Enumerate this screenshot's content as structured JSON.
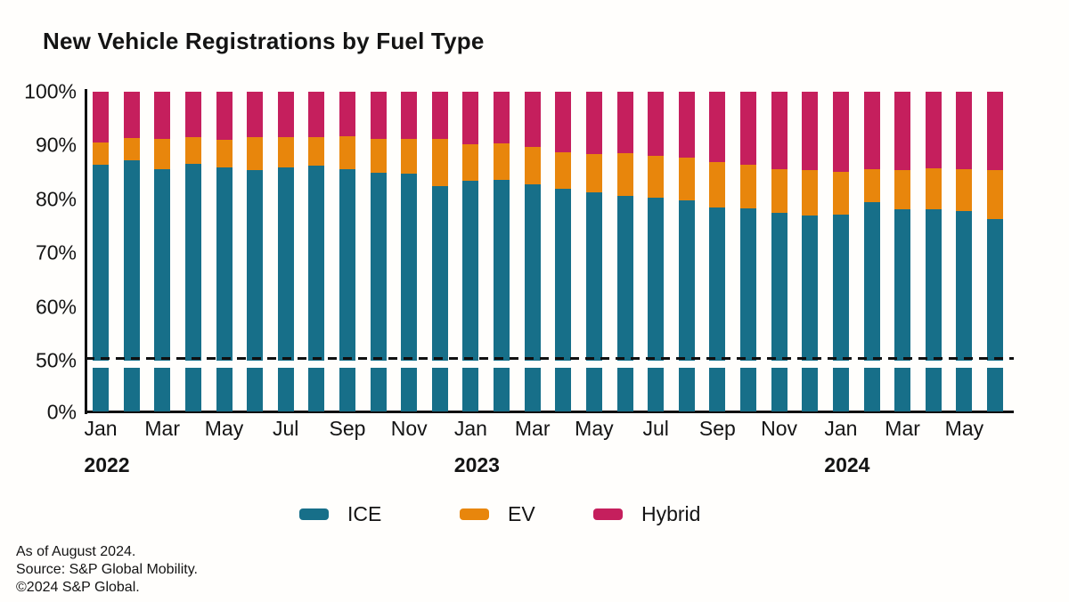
{
  "chart_data": {
    "type": "bar",
    "stacked": true,
    "unit": "percent",
    "title": "New Vehicle Registrations by Fuel Type",
    "xlabel": "",
    "ylabel": "",
    "ylim": [
      0,
      100
    ],
    "grid": false,
    "legend_position": "bottom",
    "axis_break": {
      "compressed_range": [
        0,
        50
      ],
      "note": "y-axis compressed between 0% and 50%, shown with white gap in bars below 50% line"
    },
    "reference_line": {
      "pct": 50,
      "style": "dashed",
      "color": "#101010"
    },
    "x": [
      "Jan 2022",
      "Feb 2022",
      "Mar 2022",
      "Apr 2022",
      "May 2022",
      "Jun 2022",
      "Jul 2022",
      "Aug 2022",
      "Sep 2022",
      "Oct 2022",
      "Nov 2022",
      "Dec 2022",
      "Jan 2023",
      "Feb 2023",
      "Mar 2023",
      "Apr 2023",
      "May 2023",
      "Jun 2023",
      "Jul 2023",
      "Aug 2023",
      "Sep 2023",
      "Oct 2023",
      "Nov 2023",
      "Dec 2023",
      "Jan 2024",
      "Feb 2024",
      "Mar 2024",
      "Apr 2024",
      "May 2024",
      "Jun 2024"
    ],
    "series": [
      {
        "name": "ICE",
        "color": "#176F89",
        "values": [
          86.5,
          87.2,
          85.6,
          86.6,
          86.0,
          85.5,
          86.0,
          86.2,
          85.6,
          85.0,
          84.8,
          82.5,
          83.4,
          83.6,
          82.7,
          82.0,
          81.3,
          80.7,
          80.3,
          79.8,
          78.5,
          78.3,
          77.5,
          77.0,
          77.2,
          79.5,
          78.2,
          78.2,
          77.8,
          76.3
        ]
      },
      {
        "name": "EV",
        "color": "#E8860C",
        "values": [
          4.0,
          4.2,
          5.7,
          4.9,
          5.1,
          6.0,
          5.6,
          5.4,
          6.1,
          6.3,
          6.4,
          8.7,
          6.9,
          6.8,
          7.0,
          6.8,
          7.1,
          7.9,
          7.8,
          7.9,
          8.5,
          8.1,
          8.1,
          8.4,
          7.9,
          6.1,
          7.3,
          7.6,
          7.8,
          9.1
        ]
      },
      {
        "name": "Hybrid",
        "color": "#C51F5D",
        "values": [
          9.5,
          8.6,
          8.7,
          8.5,
          8.9,
          8.5,
          8.4,
          8.4,
          8.3,
          8.7,
          8.8,
          8.8,
          9.7,
          9.6,
          10.3,
          11.2,
          11.6,
          11.4,
          11.9,
          12.3,
          13.0,
          13.6,
          14.4,
          14.6,
          14.9,
          14.4,
          14.5,
          14.2,
          14.4,
          14.6
        ]
      }
    ],
    "y_ticks": [
      {
        "pct": 100,
        "label": "100%"
      },
      {
        "pct": 90,
        "label": "90%"
      },
      {
        "pct": 80,
        "label": "80%"
      },
      {
        "pct": 70,
        "label": "70%"
      },
      {
        "pct": 60,
        "label": "60%"
      },
      {
        "pct": 50,
        "label": "50%"
      },
      {
        "pct": 0,
        "label": "0%"
      }
    ],
    "x_ticks": [
      {
        "index": 0,
        "label": "Jan"
      },
      {
        "index": 2,
        "label": "Mar"
      },
      {
        "index": 4,
        "label": "May"
      },
      {
        "index": 6,
        "label": "Jul"
      },
      {
        "index": 8,
        "label": "Sep"
      },
      {
        "index": 10,
        "label": "Nov"
      },
      {
        "index": 12,
        "label": "Jan"
      },
      {
        "index": 14,
        "label": "Mar"
      },
      {
        "index": 16,
        "label": "May"
      },
      {
        "index": 18,
        "label": "Jul"
      },
      {
        "index": 20,
        "label": "Sep"
      },
      {
        "index": 22,
        "label": "Nov"
      },
      {
        "index": 24,
        "label": "Jan"
      },
      {
        "index": 26,
        "label": "Mar"
      },
      {
        "index": 28,
        "label": "May"
      }
    ],
    "year_labels": [
      {
        "index": 0,
        "label": "2022"
      },
      {
        "index": 12,
        "label": "2023"
      },
      {
        "index": 24,
        "label": "2024"
      }
    ]
  },
  "legend": {
    "items": [
      {
        "label": "ICE",
        "color": "#176F89"
      },
      {
        "label": "EV",
        "color": "#E8860C"
      },
      {
        "label": "Hybrid",
        "color": "#C51F5D"
      }
    ]
  },
  "footer": {
    "as_of": "As of August 2024.",
    "source": "Source: S&P Global Mobility.",
    "copyright": "©2024 S&P Global."
  }
}
